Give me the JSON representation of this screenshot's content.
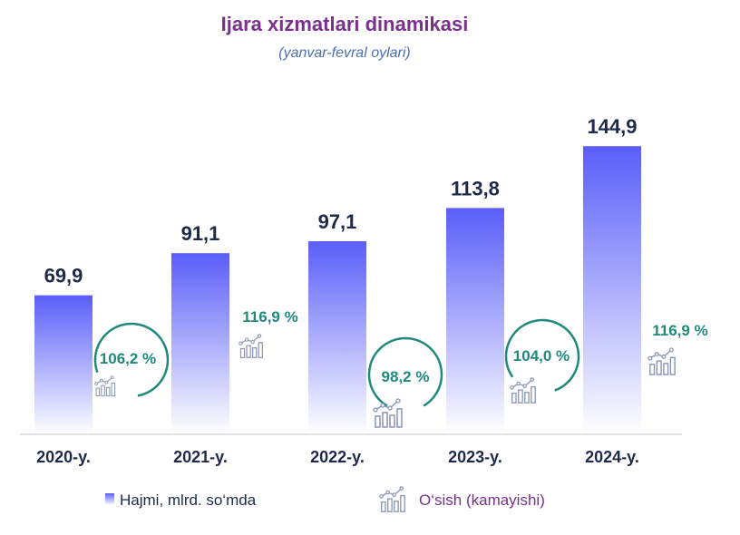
{
  "header": {
    "title": "Ijara xizmatlari dinamikasi",
    "subtitle": "(yanvar-fevral oylari)"
  },
  "colors": {
    "bar_top": "#5a5ef8",
    "bar_bottom": "#ffffff",
    "growth": "#1f8a7c",
    "title": "#7a2f8f",
    "subtitle": "#4a6fb4",
    "text": "#1d2a4a",
    "legend_growth": "#7a2f8f"
  },
  "chart_data": {
    "type": "bar",
    "title": "Ijara xizmatlari dinamikasi",
    "subtitle": "(yanvar-fevral oylari)",
    "categories": [
      "2020-y.",
      "2021-y.",
      "2022-y.",
      "2023-y.",
      "2024-y."
    ],
    "series": [
      {
        "name": "Hajmi, mlrd. so‘mda",
        "values": [
          69.9,
          91.1,
          97.1,
          113.8,
          144.9
        ]
      }
    ],
    "value_labels": [
      "69,9",
      "91,1",
      "97,1",
      "113,8",
      "144,9"
    ],
    "growth_labels": [
      "106,2 %",
      "116,9 %",
      "98,2 %",
      "104,0 %",
      "116,9 %"
    ],
    "growth_series_name": "O‘sish (kamayishi)",
    "growth_icon": "growth-chart-icon",
    "ylim": [
      0,
      150
    ],
    "grid": false,
    "legend_position": "bottom"
  }
}
